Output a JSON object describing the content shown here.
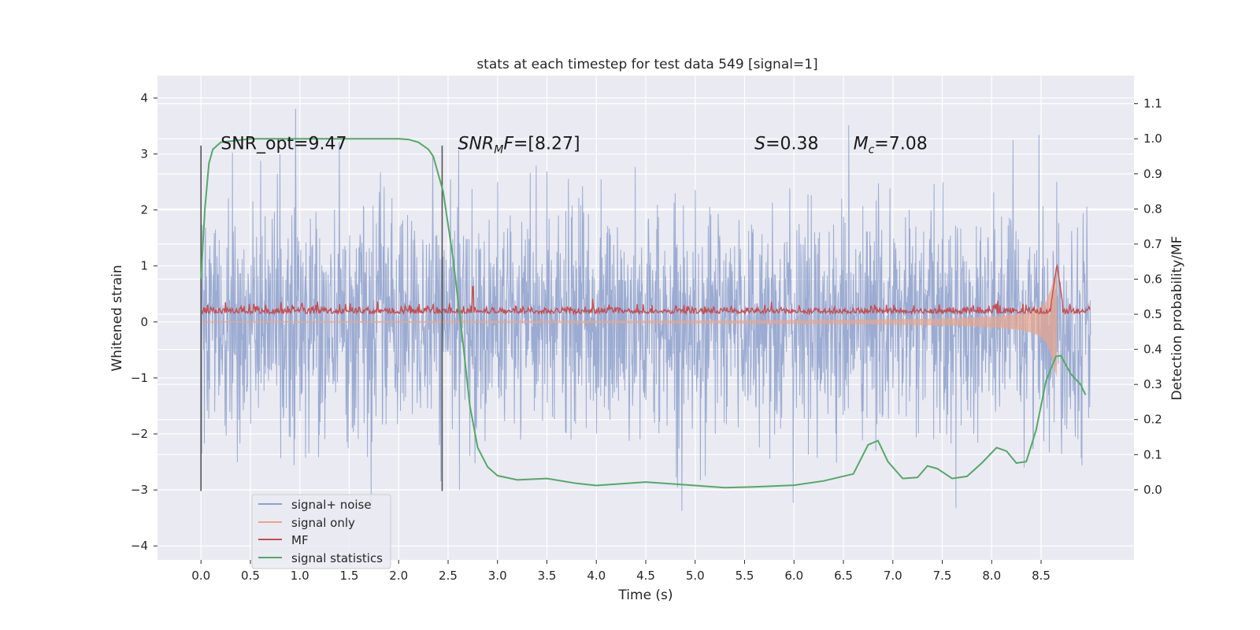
{
  "chart_data": {
    "type": "line",
    "title": "stats at each timestep for test data 549 [signal=1]",
    "xlabel": "Time (s)",
    "ylabel": "Whitened strain",
    "ylabel_right": "Detection probability/MF",
    "xlim": [
      -0.44,
      9.44
    ],
    "ylim": [
      -4.25,
      4.4
    ],
    "ylim_right": [
      -0.2,
      1.18
    ],
    "x_ticks": [
      "0.0",
      "0.5",
      "1.0",
      "1.5",
      "2.0",
      "2.5",
      "3.0",
      "3.5",
      "4.0",
      "4.5",
      "5.0",
      "5.5",
      "6.0",
      "6.5",
      "7.0",
      "7.5",
      "8.0",
      "8.5"
    ],
    "y_ticks_left": [
      "4",
      "3",
      "2",
      "1",
      "0",
      "−1",
      "−2",
      "−3",
      "−4"
    ],
    "y_ticks_right": [
      "1.1",
      "1.0",
      "0.9",
      "0.8",
      "0.7",
      "0.6",
      "0.5",
      "0.4",
      "0.3",
      "0.2",
      "0.1",
      "0.0"
    ],
    "grid": true,
    "legend_position": "lower-left",
    "duration_s": 9.0,
    "series": [
      {
        "name": "signal+ noise",
        "color": "#8da0cb",
        "std": 1.0,
        "range": [
          -3.9,
          4.05
        ]
      },
      {
        "name": "signal only",
        "color": "#e8a58c",
        "chirp_end_s": 8.66,
        "peak_amplitude": 1.0
      },
      {
        "name": "MF",
        "color": "#c44e52",
        "baseline": 0.17,
        "peak_time_s": 8.66,
        "peak_value": 1.03
      },
      {
        "name": "signal statistics",
        "color": "#55a868",
        "x": [
          0.0,
          0.04,
          0.08,
          0.12,
          0.2,
          0.5,
          1.0,
          1.5,
          2.0,
          2.1,
          2.2,
          2.3,
          2.35,
          2.45,
          2.55,
          2.65,
          2.72,
          2.8,
          2.9,
          3.0,
          3.2,
          3.5,
          3.8,
          4.0,
          4.2,
          4.5,
          5.0,
          5.3,
          5.6,
          6.0,
          6.3,
          6.6,
          6.75,
          6.85,
          6.95,
          7.1,
          7.25,
          7.35,
          7.45,
          7.6,
          7.75,
          7.9,
          8.05,
          8.15,
          8.25,
          8.35,
          8.45,
          8.55,
          8.65,
          8.7,
          8.8,
          8.9,
          8.95
        ],
        "y": [
          0.6,
          0.8,
          0.93,
          0.97,
          0.99,
          1.0,
          1.0,
          1.0,
          1.0,
          0.998,
          0.99,
          0.97,
          0.95,
          0.85,
          0.66,
          0.42,
          0.24,
          0.12,
          0.065,
          0.04,
          0.028,
          0.032,
          0.018,
          0.012,
          0.016,
          0.022,
          0.012,
          0.006,
          0.008,
          0.013,
          0.025,
          0.045,
          0.128,
          0.14,
          0.08,
          0.032,
          0.035,
          0.068,
          0.06,
          0.032,
          0.038,
          0.076,
          0.12,
          0.11,
          0.076,
          0.08,
          0.17,
          0.31,
          0.38,
          0.382,
          0.33,
          0.3,
          0.27
        ]
      }
    ],
    "vertical_markers_s": [
      0.0,
      2.44
    ],
    "annotations": [
      {
        "plain": "SNR_opt=9.47",
        "x": 0.2
      },
      {
        "var": "SNR",
        "sub": "M",
        "italic_tail": "F",
        "value": "=[8.27]",
        "x": 2.6
      },
      {
        "var": "S",
        "value": "=0.38",
        "x": 5.6
      },
      {
        "var": "M",
        "sub": "c",
        "value": "=7.08",
        "x": 6.6
      }
    ],
    "annotation_y": 3.2
  }
}
